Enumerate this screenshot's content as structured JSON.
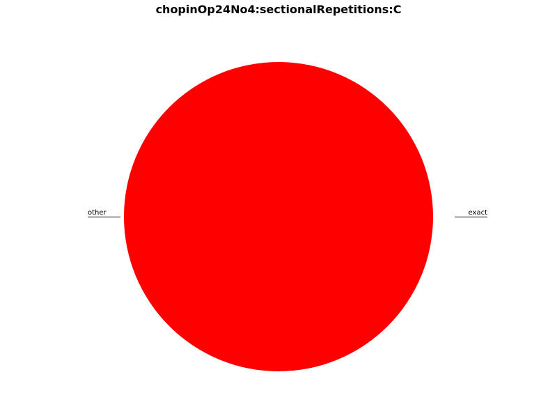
{
  "chart_data": {
    "type": "pie",
    "title": "chopinOp24No4:sectionalRepetitions:C",
    "slices": [
      {
        "label": "exact",
        "value": 0.0,
        "color": "#ff0000"
      },
      {
        "label": "other",
        "value": 100.0,
        "color": "#ff0000"
      }
    ],
    "start_angle_deg": 0,
    "direction": "counterclockwise",
    "legend": "none"
  }
}
